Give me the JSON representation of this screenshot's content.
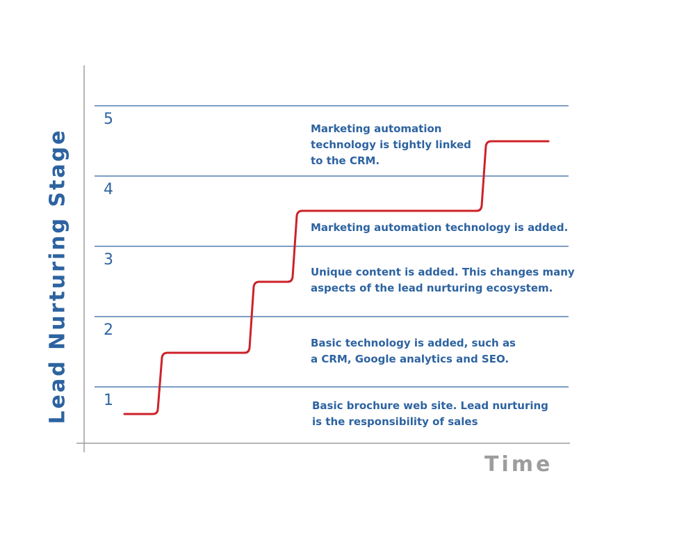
{
  "axes": {
    "y_title": "Lead Nurturing Stage",
    "x_title": "Time"
  },
  "levels": [
    "1",
    "2",
    "3",
    "4",
    "5"
  ],
  "annotations": [
    "Marketing automation\ntechnology is tightly linked\nto the CRM.",
    "Marketing automation technology is added.",
    "Unique content is added. This changes many\naspects of the lead nurturing ecosystem.",
    "Basic technology is added, such as\na CRM, Google analytics and SEO.",
    "Basic brochure web site. Lead nurturing\nis the responsibility of sales"
  ],
  "colors": {
    "text_blue": "#2d63a0",
    "line_red": "#cc2229",
    "axis_gray": "#9d9d9d"
  }
}
